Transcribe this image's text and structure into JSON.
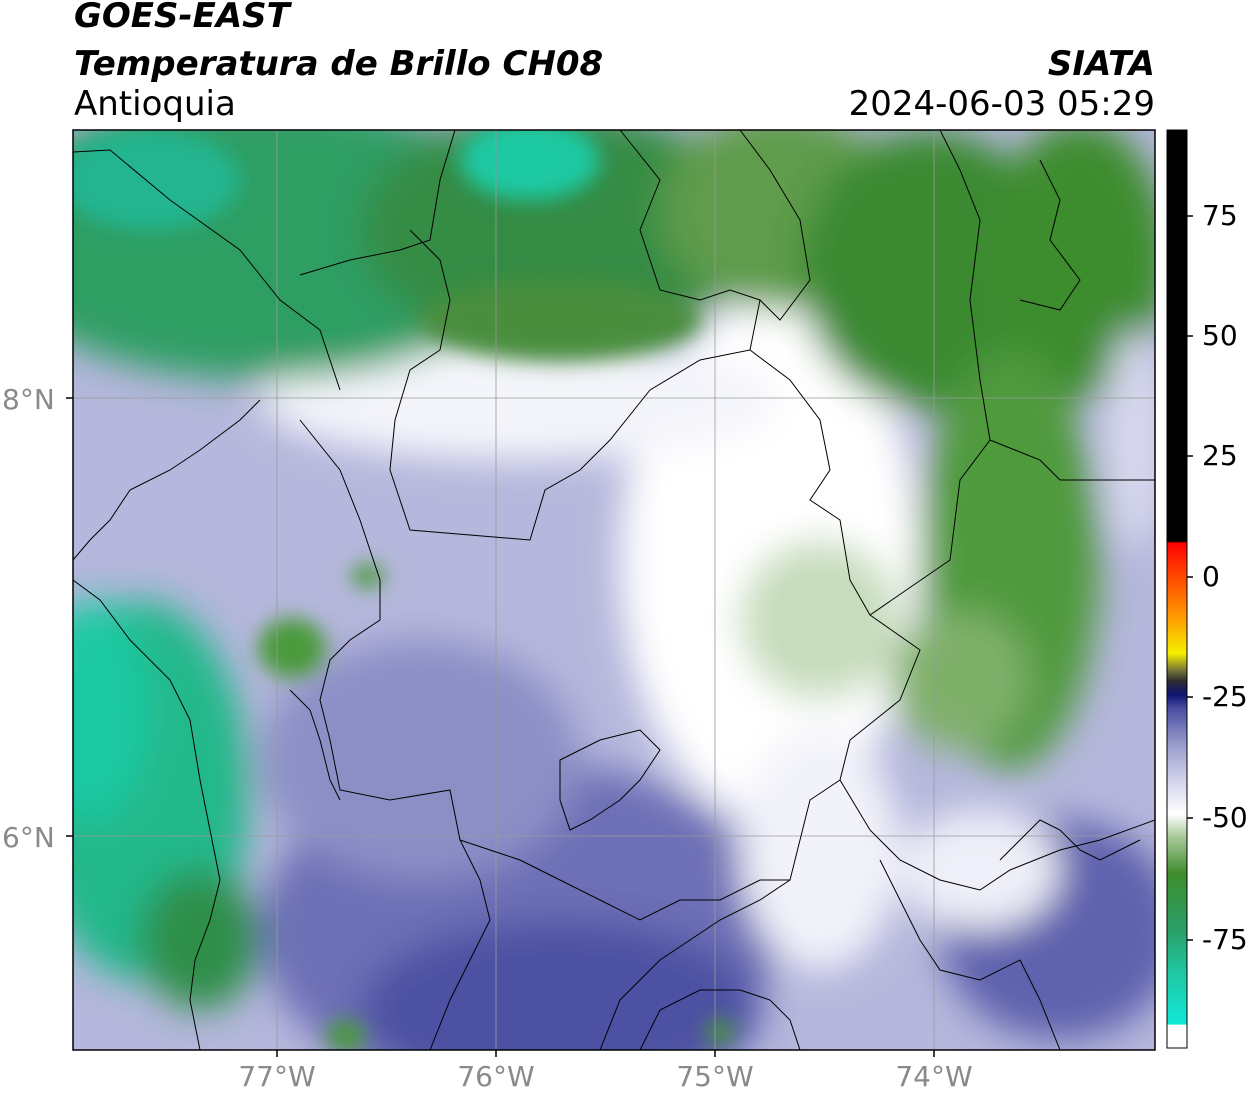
{
  "header": {
    "satellite": "GOES-EAST",
    "product": "Temperatura de Brillo CH08",
    "region": "Antioquia",
    "organization": "SIATA",
    "datetime": "2024-06-03 05:29"
  },
  "axes": {
    "lat_ticks": [
      {
        "label": "8°N",
        "value": 8
      },
      {
        "label": "6°N",
        "value": 6
      }
    ],
    "lon_ticks": [
      {
        "label": "77°W",
        "value": -77
      },
      {
        "label": "76°W",
        "value": -76
      },
      {
        "label": "75°W",
        "value": -75
      },
      {
        "label": "74°W",
        "value": -74
      }
    ],
    "lon_range": [
      -77.94,
      -73.0
    ],
    "lat_range": [
      5.0,
      9.2
    ]
  },
  "colorbar": {
    "ticks": [
      {
        "label": "75",
        "value": 75
      },
      {
        "label": "50",
        "value": 50
      },
      {
        "label": "25",
        "value": 25
      },
      {
        "label": "0",
        "value": 0
      },
      {
        "label": "-25",
        "value": -25
      },
      {
        "label": "-50",
        "value": -50
      },
      {
        "label": "-75",
        "value": -75
      }
    ],
    "range": [
      -95,
      90
    ]
  },
  "colors": {
    "cold_cyan": "#1fc9a3",
    "green": "#3f8e2e",
    "white": "#ffffff",
    "lavender": "#a9acd6",
    "purple": "#6b6fb5",
    "dark_blue": "#3b3f94",
    "black": "#000000"
  }
}
